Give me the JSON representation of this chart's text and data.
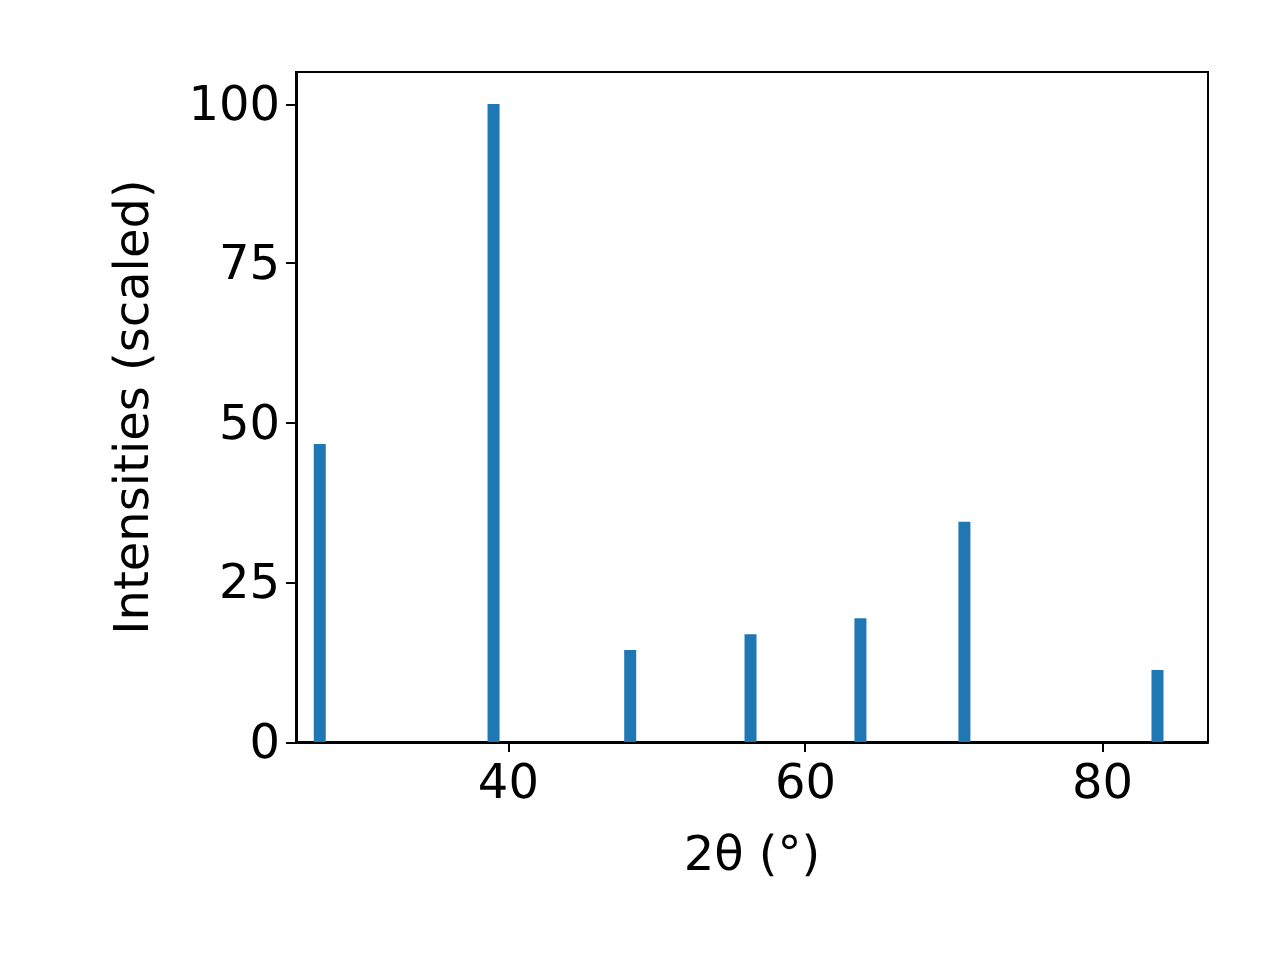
{
  "chart_data": {
    "type": "bar",
    "xlabel": "2θ (°)",
    "ylabel": "Intensities (scaled)",
    "x": [
      27.3,
      39.0,
      48.2,
      56.3,
      63.7,
      70.7,
      83.7
    ],
    "values": [
      46.7,
      100,
      14.4,
      16.9,
      19.4,
      34.5,
      11.3
    ],
    "color": "#1f77b4",
    "xlim": [
      25.7,
      87.1
    ],
    "xticks": [
      40,
      60,
      80
    ],
    "ylim": [
      0,
      105
    ],
    "yticks": [
      0,
      25,
      50,
      75,
      100
    ],
    "grid": false
  }
}
